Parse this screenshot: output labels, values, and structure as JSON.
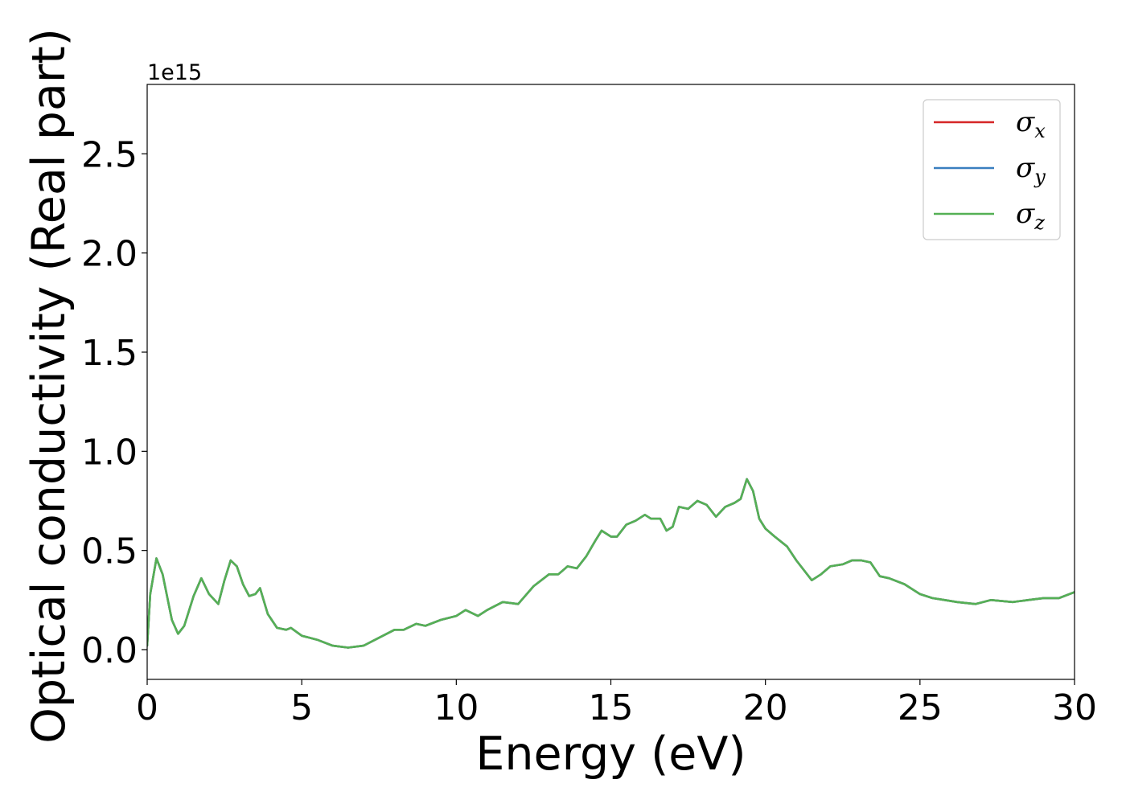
{
  "chart_data": {
    "type": "line",
    "xlabel": "Energy (eV)",
    "ylabel": "Optical conductivity (Real part)",
    "y_offset_text": "1e15",
    "xlim": [
      0,
      30
    ],
    "ylim": [
      -0.15,
      2.85
    ],
    "xticks": [
      0,
      5,
      10,
      15,
      20,
      25,
      30
    ],
    "xtick_labels": [
      "0",
      "5",
      "10",
      "15",
      "20",
      "25",
      "30"
    ],
    "yticks": [
      0.0,
      0.5,
      1.0,
      1.5,
      2.0,
      2.5
    ],
    "ytick_labels": [
      "0.0",
      "0.5",
      "1.0",
      "1.5",
      "2.0",
      "2.5"
    ],
    "grid": false,
    "legend_position": "top-right",
    "legend": [
      {
        "symbol": "σ",
        "sub": "x",
        "color": "#d62728"
      },
      {
        "symbol": "σ",
        "sub": "y",
        "color": "#3a7fbf"
      },
      {
        "symbol": "σ",
        "sub": "z",
        "color": "#55b055"
      }
    ],
    "x": [
      0,
      0.1,
      0.3,
      0.5,
      0.8,
      1.0,
      1.2,
      1.5,
      1.75,
      2.0,
      2.3,
      2.5,
      2.7,
      2.9,
      3.1,
      3.3,
      3.5,
      3.65,
      3.9,
      4.2,
      4.5,
      4.65,
      5.0,
      5.5,
      6.0,
      6.5,
      7.0,
      7.5,
      8.0,
      8.3,
      8.7,
      9.0,
      9.5,
      10.0,
      10.3,
      10.7,
      11.0,
      11.5,
      12.0,
      12.5,
      13.0,
      13.3,
      13.6,
      13.9,
      14.2,
      14.5,
      14.7,
      15.0,
      15.2,
      15.5,
      15.8,
      16.1,
      16.3,
      16.6,
      16.8,
      17.0,
      17.2,
      17.5,
      17.8,
      18.1,
      18.4,
      18.7,
      19.0,
      19.2,
      19.4,
      19.6,
      19.8,
      20.0,
      20.3,
      20.7,
      21.0,
      21.5,
      21.8,
      22.1,
      22.5,
      22.8,
      23.1,
      23.4,
      23.7,
      24.0,
      24.5,
      25.0,
      25.4,
      25.8,
      26.2,
      26.8,
      27.3,
      28.0,
      28.5,
      29.0,
      29.5,
      30.0
    ],
    "series": [
      {
        "color": "#d62728",
        "values": [
          0.02,
          0.28,
          0.46,
          0.38,
          0.15,
          0.08,
          0.12,
          0.27,
          0.36,
          0.28,
          0.23,
          0.35,
          0.45,
          0.42,
          0.33,
          0.27,
          0.28,
          0.31,
          0.18,
          0.11,
          0.1,
          0.11,
          0.07,
          0.05,
          0.02,
          0.01,
          0.02,
          0.06,
          0.1,
          0.1,
          0.13,
          0.12,
          0.15,
          0.17,
          0.2,
          0.17,
          0.2,
          0.24,
          0.23,
          0.32,
          0.38,
          0.38,
          0.42,
          0.41,
          0.47,
          0.55,
          0.6,
          0.57,
          0.57,
          0.63,
          0.65,
          0.68,
          0.66,
          0.66,
          0.6,
          0.62,
          0.72,
          0.71,
          0.75,
          0.73,
          0.67,
          0.72,
          0.74,
          0.76,
          0.86,
          0.8,
          0.66,
          0.61,
          0.57,
          0.52,
          0.45,
          0.35,
          0.38,
          0.42,
          0.43,
          0.45,
          0.45,
          0.44,
          0.37,
          0.36,
          0.33,
          0.28,
          0.26,
          0.25,
          0.24,
          0.23,
          0.25,
          0.24,
          0.25,
          0.26,
          0.26,
          0.29
        ]
      },
      {
        "color": "#3a7fbf",
        "values": [
          0.02,
          0.28,
          0.46,
          0.38,
          0.15,
          0.08,
          0.12,
          0.27,
          0.36,
          0.28,
          0.23,
          0.35,
          0.45,
          0.42,
          0.33,
          0.27,
          0.28,
          0.31,
          0.18,
          0.11,
          0.1,
          0.11,
          0.07,
          0.05,
          0.02,
          0.01,
          0.02,
          0.06,
          0.1,
          0.1,
          0.13,
          0.12,
          0.15,
          0.17,
          0.2,
          0.17,
          0.2,
          0.24,
          0.23,
          0.32,
          0.38,
          0.38,
          0.42,
          0.41,
          0.47,
          0.55,
          0.6,
          0.57,
          0.57,
          0.63,
          0.65,
          0.68,
          0.66,
          0.66,
          0.6,
          0.62,
          0.72,
          0.71,
          0.75,
          0.73,
          0.67,
          0.72,
          0.74,
          0.76,
          0.86,
          0.8,
          0.66,
          0.61,
          0.57,
          0.52,
          0.45,
          0.35,
          0.38,
          0.42,
          0.43,
          0.45,
          0.45,
          0.44,
          0.37,
          0.36,
          0.33,
          0.28,
          0.26,
          0.25,
          0.24,
          0.23,
          0.25,
          0.24,
          0.25,
          0.26,
          0.26,
          0.29
        ]
      },
      {
        "color": "#55b055",
        "values": [
          0.02,
          0.28,
          0.46,
          0.38,
          0.15,
          0.08,
          0.12,
          0.27,
          0.36,
          0.28,
          0.23,
          0.35,
          0.45,
          0.42,
          0.33,
          0.27,
          0.28,
          0.31,
          0.18,
          0.11,
          0.1,
          0.11,
          0.07,
          0.05,
          0.02,
          0.01,
          0.02,
          0.06,
          0.1,
          0.1,
          0.13,
          0.12,
          0.15,
          0.17,
          0.2,
          0.17,
          0.2,
          0.24,
          0.23,
          0.32,
          0.38,
          0.38,
          0.42,
          0.41,
          0.47,
          0.55,
          0.6,
          0.57,
          0.57,
          0.63,
          0.65,
          0.68,
          0.66,
          0.66,
          0.6,
          0.62,
          0.72,
          0.71,
          0.75,
          0.73,
          0.67,
          0.72,
          0.74,
          0.76,
          0.86,
          0.8,
          0.66,
          0.61,
          0.57,
          0.52,
          0.45,
          0.35,
          0.38,
          0.42,
          0.43,
          0.45,
          0.45,
          0.44,
          0.37,
          0.36,
          0.33,
          0.28,
          0.26,
          0.25,
          0.24,
          0.23,
          0.25,
          0.24,
          0.25,
          0.26,
          0.26,
          0.29
        ]
      }
    ]
  }
}
